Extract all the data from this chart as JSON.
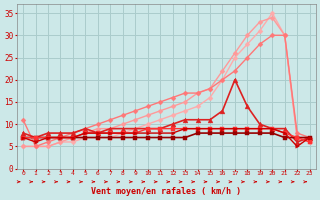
{
  "bg_color": "#cce8e8",
  "grid_color": "#aacccc",
  "x_labels": [
    0,
    1,
    2,
    3,
    4,
    5,
    6,
    7,
    8,
    9,
    10,
    11,
    12,
    13,
    14,
    15,
    16,
    17,
    18,
    19,
    20,
    21,
    22,
    23
  ],
  "xlabel": "Vent moyen/en rafales ( km/h )",
  "ylim": [
    0,
    37
  ],
  "yticks": [
    0,
    5,
    10,
    15,
    20,
    25,
    30,
    35
  ],
  "series": [
    {
      "y": [
        5,
        5,
        5,
        6,
        6,
        7,
        7,
        7,
        8,
        9,
        10,
        11,
        12,
        13,
        14,
        16,
        20,
        25,
        28,
        31,
        35,
        30,
        7,
        6
      ],
      "color": "#ffaaaa",
      "lw": 1.0,
      "marker": "D",
      "ms": 2.5
    },
    {
      "y": [
        5,
        5,
        5,
        6,
        7,
        8,
        9,
        9,
        10,
        11,
        12,
        13,
        14,
        15,
        17,
        18,
        22,
        26,
        30,
        33,
        34,
        30,
        7,
        6
      ],
      "color": "#ff9999",
      "lw": 1.0,
      "marker": "D",
      "ms": 2.5
    },
    {
      "y": [
        11,
        5,
        6,
        7,
        8,
        9,
        10,
        11,
        12,
        13,
        14,
        15,
        16,
        17,
        17,
        18,
        20,
        22,
        25,
        28,
        30,
        30,
        8,
        7
      ],
      "color": "#ff7777",
      "lw": 1.0,
      "marker": "D",
      "ms": 2.5
    },
    {
      "y": [
        8,
        7,
        8,
        8,
        8,
        9,
        8,
        9,
        9,
        9,
        9,
        9,
        10,
        11,
        11,
        11,
        13,
        20,
        14,
        10,
        9,
        9,
        6,
        7
      ],
      "color": "#dd2222",
      "lw": 1.2,
      "marker": "^",
      "ms": 3.5
    },
    {
      "y": [
        7,
        7,
        7,
        7,
        7,
        7,
        7,
        7,
        7,
        7,
        7,
        7,
        7,
        7,
        8,
        8,
        8,
        8,
        8,
        8,
        8,
        7,
        7,
        7
      ],
      "color": "#990000",
      "lw": 1.2,
      "marker": "s",
      "ms": 2.5
    },
    {
      "y": [
        7,
        7,
        7,
        7,
        7,
        8,
        8,
        8,
        8,
        8,
        9,
        9,
        9,
        9,
        9,
        9,
        9,
        9,
        9,
        9,
        9,
        8,
        7,
        6
      ],
      "color": "#ff3333",
      "lw": 1.0,
      "marker": "s",
      "ms": 2.5
    },
    {
      "y": [
        7,
        6,
        7,
        7,
        7,
        8,
        8,
        8,
        8,
        8,
        8,
        8,
        8,
        9,
        9,
        9,
        9,
        9,
        9,
        9,
        9,
        8,
        5,
        7
      ],
      "color": "#cc0000",
      "lw": 1.0,
      "marker": ">",
      "ms": 2.5
    }
  ],
  "arrow_color": "#cc0000"
}
